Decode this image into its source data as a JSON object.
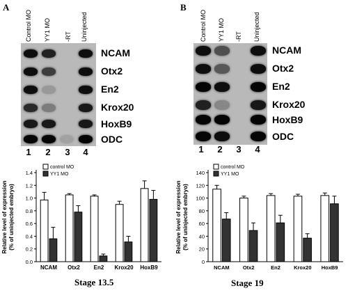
{
  "panels": [
    {
      "letter": "A",
      "lane_labels": [
        "Control MO",
        "YY1 MO",
        "-RT",
        "Uninjected"
      ],
      "genes": [
        "NCAM",
        "Otx2",
        "En2",
        "Krox20",
        "HoxB9",
        "ODC"
      ],
      "lane_numbers": [
        "1",
        "2",
        "3",
        "4"
      ],
      "stage": "Stage 13.5"
    },
    {
      "letter": "B",
      "lane_labels": [
        "Control MO",
        "YY1 MO",
        "-RT",
        "Uninjected"
      ],
      "genes": [
        "NCAM",
        "Otx2",
        "En2",
        "Krox20",
        "HoxB9",
        "ODC"
      ],
      "lane_numbers": [
        "1",
        "2",
        "3",
        "4"
      ],
      "stage": "Stage 19"
    }
  ],
  "chart_data": [
    {
      "type": "bar",
      "categories": [
        "NCAM",
        "Otx2",
        "En2",
        "Krox20",
        "HoxB9"
      ],
      "series": [
        {
          "name": "control MO",
          "values": [
            0.97,
            1.05,
            1.03,
            0.9,
            1.15
          ],
          "errors": [
            0.12,
            0.02,
            0.02,
            0.05,
            0.12
          ]
        },
        {
          "name": "YY1 MO",
          "values": [
            0.36,
            0.78,
            0.09,
            0.31,
            0.98
          ],
          "errors": [
            0.18,
            0.1,
            0.03,
            0.09,
            0.14
          ]
        }
      ],
      "ylabel": "Relative level of expression (% of uninjected embryo)",
      "yticks": [
        "0.0",
        "0.2",
        "0.4",
        "0.6",
        "0.8",
        "1.0",
        "1.2",
        "1.4"
      ],
      "ylim": [
        0,
        1.4
      ],
      "legend_position": "top-left"
    },
    {
      "type": "bar",
      "categories": [
        "NCAM",
        "Otx2",
        "En2",
        "Krox20",
        "HoxB9"
      ],
      "series": [
        {
          "name": "control MO",
          "values": [
            114,
            100,
            104,
            103,
            104
          ],
          "errors": [
            6,
            3,
            3,
            3,
            4
          ]
        },
        {
          "name": "YY1 MO",
          "values": [
            67,
            49,
            61,
            37,
            91
          ],
          "errors": [
            10,
            12,
            12,
            7,
            12
          ]
        }
      ],
      "ylabel": "Relative level of expression (% of uninjected embryo)",
      "yticks": [
        "0",
        "20",
        "40",
        "60",
        "80",
        "100",
        "120",
        "140"
      ],
      "ylim": [
        0,
        140
      ],
      "legend_position": "top-left"
    }
  ],
  "colors": {
    "control": "#ffffff",
    "yy1": "#333333"
  }
}
